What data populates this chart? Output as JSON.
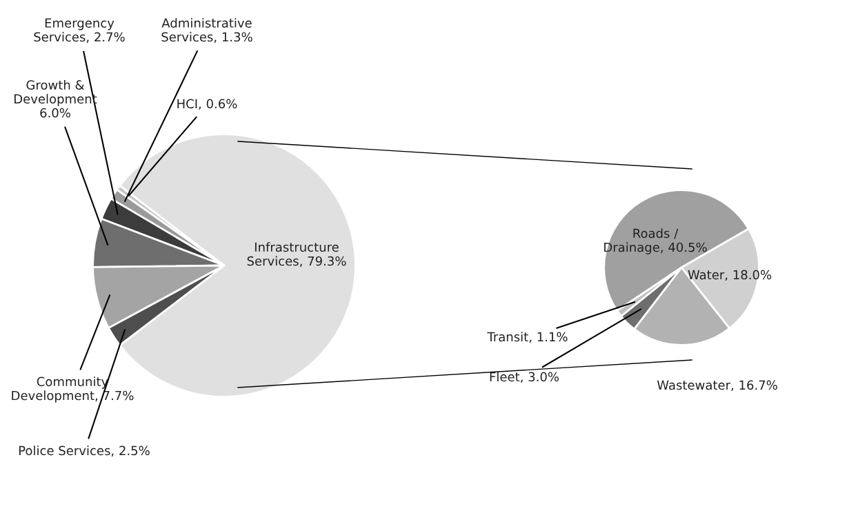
{
  "chart_data": [
    {
      "type": "pie",
      "categories": [
        "Infrastructure\nServices",
        "HCI",
        "Administrative\nServices",
        "Emergency\nServices",
        "Growth &\nDevelopment",
        "Community\nDevelopment",
        "Police Services"
      ],
      "values": [
        79.3,
        0.6,
        1.3,
        2.7,
        6.0,
        7.7,
        2.5
      ],
      "value_labels": [
        "79.3%",
        "0.6%",
        "1.3%",
        "2.7%",
        "6.0%",
        "7.7%",
        "2.5%"
      ],
      "colors": [
        "#e0e0e0",
        "#c4c4c4",
        "#9a9a9a",
        "#3c3c3c",
        "#6e6e6e",
        "#a4a4a4",
        "#4e4e4e"
      ]
    },
    {
      "type": "pie",
      "categories": [
        "Roads /\nDrainage",
        "Water",
        "Wastewater",
        "Fleet",
        "Transit"
      ],
      "values": [
        40.5,
        18.0,
        16.7,
        3.0,
        1.1
      ],
      "value_labels": [
        "40.5%",
        "18.0%",
        "16.7%",
        "3.0%",
        "1.1%"
      ],
      "colors": [
        "#a0a0a0",
        "#d0d0d0",
        "#b2b2b2",
        "#6e6e6e",
        "#c0c0c0"
      ]
    }
  ]
}
